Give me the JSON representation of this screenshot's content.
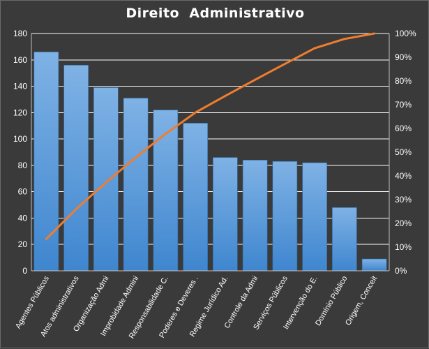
{
  "chart_data": {
    "type": "bar",
    "title": "Direito  Administrativo",
    "categories": [
      "Agentes Públicos",
      "Atos administrativos",
      "Organização Admi",
      "Improbidade Admini",
      "Responsabilidade C.",
      "Poderes e Deveres .",
      "Regime Jurídico Ad.",
      "Controle da Admi",
      "Serviços Públicos",
      "Intervenção do E.",
      "Domínio Público",
      "Origem, Conceit"
    ],
    "series": [
      {
        "type": "bar",
        "values": [
          166,
          156,
          139,
          131,
          122,
          112,
          86,
          84,
          83,
          82,
          48,
          9
        ]
      },
      {
        "type": "line",
        "axis": "right",
        "values": [
          13.4,
          26.0,
          37.2,
          47.8,
          57.7,
          66.7,
          73.7,
          80.5,
          87.2,
          93.8,
          97.7,
          100.0
        ]
      }
    ],
    "y_left": {
      "min": 0,
      "max": 180,
      "ticks": [
        0,
        20,
        40,
        60,
        80,
        100,
        120,
        140,
        160,
        180
      ]
    },
    "y_right": {
      "min": 0,
      "max": 100,
      "ticks": [
        "0%",
        "10%",
        "20%",
        "30%",
        "40%",
        "50%",
        "60%",
        "70%",
        "80%",
        "90%",
        "100%"
      ]
    },
    "grid": true,
    "legend": "none",
    "colors": {
      "background": "#3a3a3a",
      "bar_top": "#7fb2e5",
      "bar_bottom": "#3f86cf",
      "line": "#f07d2e",
      "grid": "#ffffff",
      "text": "#ffffff"
    }
  }
}
